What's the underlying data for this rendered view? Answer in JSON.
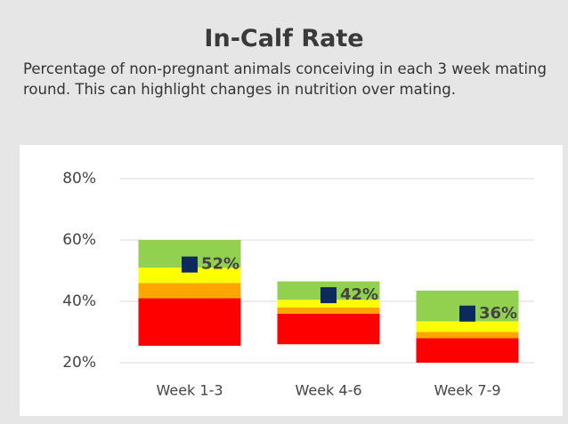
{
  "chart_data": {
    "type": "range-bar",
    "title": "In-Calf Rate",
    "subtitle": "Percentage of non-pregnant animals conceiving in each 3 week mating round. This can highlight changes in nutrition over mating.",
    "categories": [
      "Week 1-3",
      "Week 4-6",
      "Week 7-9"
    ],
    "bands": [
      {
        "color": "#ff0000",
        "ranges": [
          [
            25.5,
            41
          ],
          [
            26,
            36
          ],
          [
            20,
            28
          ]
        ]
      },
      {
        "color": "#ffa500",
        "ranges": [
          [
            41,
            46
          ],
          [
            36,
            38
          ],
          [
            28,
            30
          ]
        ]
      },
      {
        "color": "#ffff00",
        "ranges": [
          [
            46,
            51
          ],
          [
            38,
            40.5
          ],
          [
            30,
            33.5
          ]
        ]
      },
      {
        "color": "#92d050",
        "ranges": [
          [
            51,
            60
          ],
          [
            40.5,
            46.5
          ],
          [
            33.5,
            43.5
          ]
        ]
      }
    ],
    "markers": {
      "color": "#0d2a5c",
      "values": [
        52,
        42,
        36
      ],
      "value_labels": [
        "52%",
        "42%",
        "36%"
      ]
    },
    "ylim": [
      20,
      80
    ],
    "yticks": [
      {
        "value": 20,
        "label": "20%"
      },
      {
        "value": 40,
        "label": "40%"
      },
      {
        "value": 60,
        "label": "60%"
      },
      {
        "value": 80,
        "label": "80%"
      }
    ],
    "grid": true
  }
}
